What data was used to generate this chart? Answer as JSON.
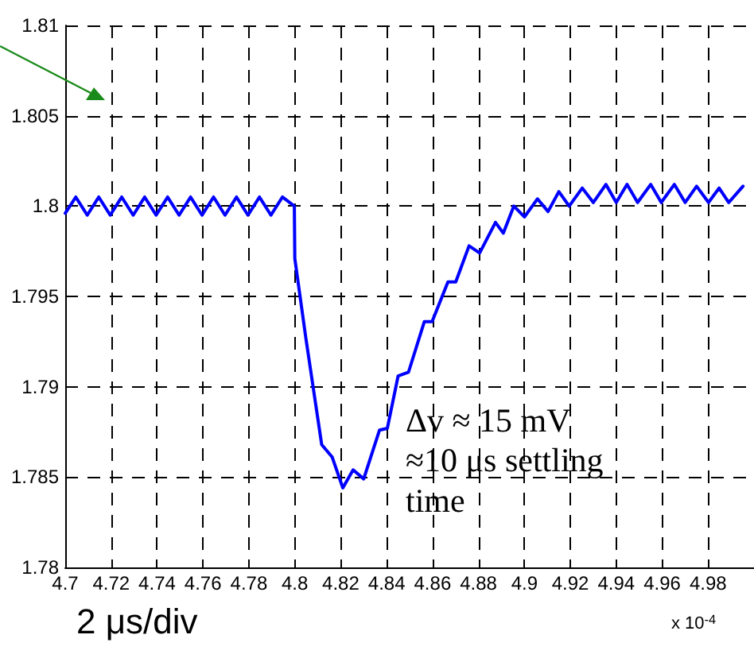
{
  "chart_data": {
    "type": "line",
    "x": [
      4.7,
      4.7046,
      4.7096,
      4.7146,
      4.7196,
      4.7246,
      4.7296,
      4.7346,
      4.7396,
      4.7446,
      4.7496,
      4.7546,
      4.7596,
      4.7646,
      4.7696,
      4.7746,
      4.7796,
      4.7846,
      4.7896,
      4.7946,
      4.7998,
      4.8,
      4.8048,
      4.8117,
      4.8163,
      4.8209,
      4.8254,
      4.83,
      4.8369,
      4.8403,
      4.845,
      4.8495,
      4.8564,
      4.8598,
      4.8667,
      4.8701,
      4.8759,
      4.8805,
      4.8874,
      4.8908,
      4.8954,
      4.9,
      4.9057,
      4.9103,
      4.915,
      4.9195,
      4.9252,
      4.93,
      4.9355,
      4.94,
      4.9447,
      4.9493,
      4.955,
      4.9596,
      4.9653,
      4.97,
      4.975,
      4.9802,
      4.9848,
      4.989,
      4.9952
    ],
    "series": [
      {
        "color": "#0000ff",
        "values": [
          1.7996,
          1.8005,
          1.7995,
          1.8005,
          1.7995,
          1.8005,
          1.7995,
          1.8005,
          1.7995,
          1.8005,
          1.7995,
          1.8005,
          1.7995,
          1.8005,
          1.7995,
          1.8005,
          1.7995,
          1.8005,
          1.7995,
          1.8005,
          1.8,
          1.7971,
          1.7927,
          1.7868,
          1.7861,
          1.7844,
          1.7854,
          1.7849,
          1.7876,
          1.7877,
          1.7906,
          1.7908,
          1.7936,
          1.7936,
          1.7958,
          1.7958,
          1.7978,
          1.7974,
          1.7991,
          1.7985,
          1.8,
          1.7994,
          1.8004,
          1.7997,
          1.8008,
          1.8,
          1.801,
          1.8002,
          1.8012,
          1.8002,
          1.8012,
          1.8002,
          1.8012,
          1.8002,
          1.8012,
          1.8002,
          1.8011,
          1.8002,
          1.801,
          1.8002,
          1.8011
        ]
      }
    ],
    "xlim": [
      4.7,
      5.0
    ],
    "xticks": [
      4.7,
      4.72,
      4.74,
      4.76,
      4.78,
      4.8,
      4.82,
      4.84,
      4.86,
      4.88,
      4.9,
      4.92,
      4.94,
      4.96,
      4.98
    ],
    "ylim": [
      1.78,
      1.81
    ],
    "yticks": [
      1.78,
      1.785,
      1.79,
      1.795,
      1.8,
      1.805,
      1.81
    ],
    "grid": true,
    "marker": "none",
    "line_style": "solid",
    "annotations": [
      "Δv ≈ 15 mV",
      "≈10 μs settling time",
      "2 μs/div",
      "x 10$^{-4}$"
    ]
  }
}
